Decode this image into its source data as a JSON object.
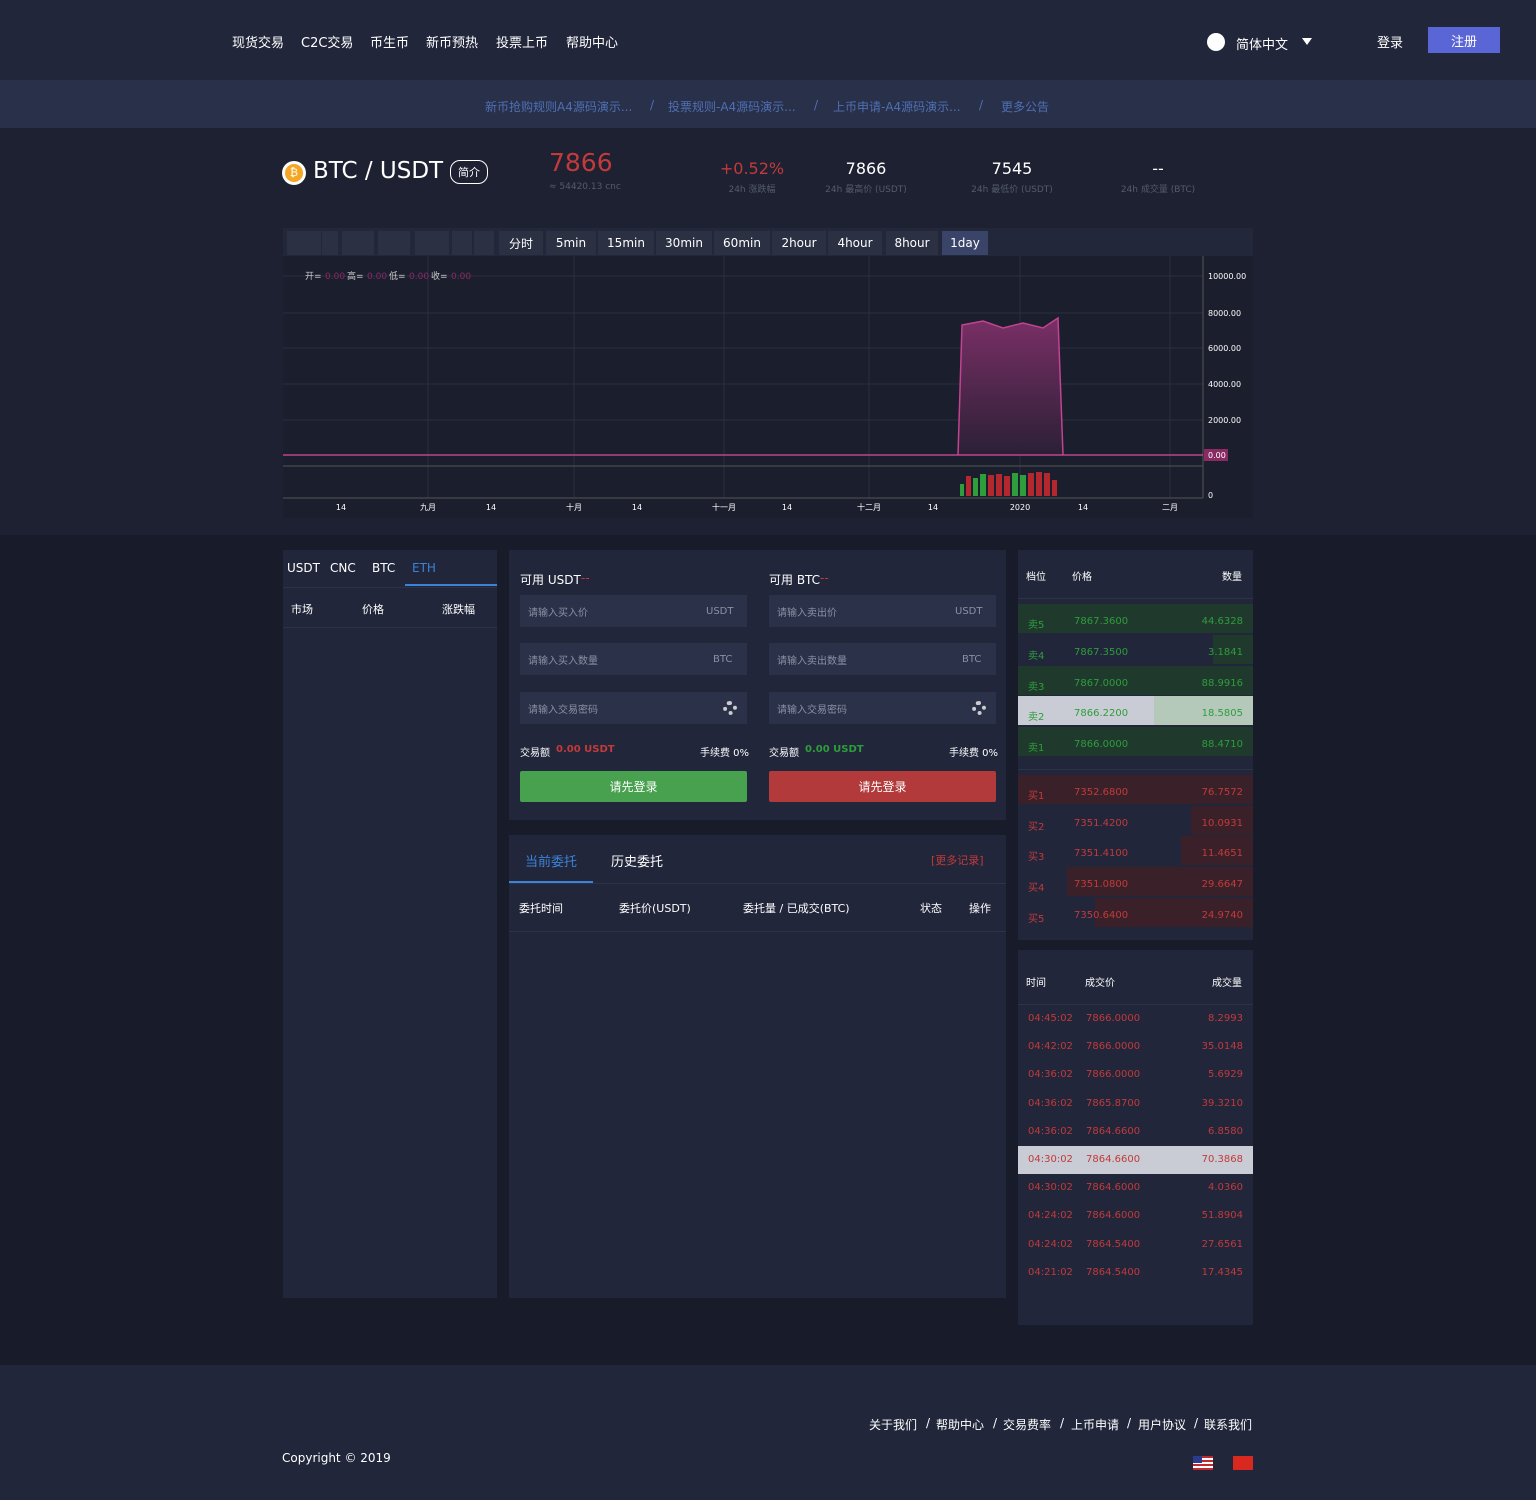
{
  "nav": {
    "items": [
      "现货交易",
      "C2C交易",
      "币生币",
      "新币预热",
      "投票上币",
      "帮助中心"
    ],
    "language": "简体中文",
    "login": "登录",
    "register": "注册"
  },
  "notices": {
    "items": [
      "新币抢购规则A4源码演示...",
      "投票规则-A4源码演示...",
      "上币申请-A4源码演示...",
      "更多公告"
    ],
    "separator": "/"
  },
  "ticker": {
    "coin_icon": "₿",
    "pair": "BTC / USDT",
    "intro": "简介",
    "price": "7866",
    "price_cnc": "≈ 54420.13 cnc",
    "stats": [
      {
        "value": "+0.52%",
        "label": "24h 涨跌幅"
      },
      {
        "value": "7866",
        "label": "24h 最高价 (USDT)"
      },
      {
        "value": "7545",
        "label": "24h 最低价 (USDT)"
      },
      {
        "value": "--",
        "label": "24h 成交量 (BTC)"
      }
    ]
  },
  "chart": {
    "intervals": [
      "分时",
      "5min",
      "15min",
      "30min",
      "60min",
      "2hour",
      "4hour",
      "8hour",
      "1day"
    ],
    "legend": [
      {
        "label": "开=",
        "value": "0.00"
      },
      {
        "label": "高=",
        "value": "0.00"
      },
      {
        "label": "低=",
        "value": "0.00"
      },
      {
        "label": "收=",
        "value": "0.00"
      }
    ],
    "y_labels": [
      "10000.00",
      "8000.00",
      "6000.00",
      "4000.00",
      "2000.00"
    ],
    "current_price": "0.00",
    "volume_zero": "0",
    "x_labels": [
      "14",
      "九月",
      "14",
      "十月",
      "14",
      "十一月",
      "14",
      "十二月",
      "14",
      "2020",
      "14",
      "二月"
    ]
  },
  "market": {
    "tabs": [
      "USDT",
      "CNC",
      "BTC",
      "ETH"
    ],
    "headers": [
      "市场",
      "价格",
      "涨跌幅"
    ]
  },
  "trade": {
    "buy": {
      "available_label": "可用 USDT",
      "available": "--",
      "price_placeholder": "请输入买入价",
      "price_unit": "USDT",
      "amount_placeholder": "请输入买入数量",
      "amount_unit": "BTC",
      "password_placeholder": "请输入交易密码",
      "total_label": "交易额",
      "total": "0.00 USDT",
      "fee": "手续费 0%",
      "button": "请先登录"
    },
    "sell": {
      "available_label": "可用 BTC",
      "available": "--",
      "price_placeholder": "请输入卖出价",
      "price_unit": "USDT",
      "amount_placeholder": "请输入卖出数量",
      "amount_unit": "BTC",
      "password_placeholder": "请输入交易密码",
      "total_label": "交易额",
      "total": "0.00 USDT",
      "fee": "手续费 0%",
      "button": "请先登录"
    }
  },
  "orders": {
    "tabs": [
      "当前委托",
      "历史委托"
    ],
    "more": "[更多记录]",
    "headers": [
      "委托时间",
      "委托价(USDT)",
      "委托量 / 已成交(BTC)",
      "状态",
      "操作"
    ]
  },
  "orderbook": {
    "headers": [
      "档位",
      "价格",
      "数量"
    ],
    "asks": [
      [
        "卖5",
        "7867.3600",
        "44.6328"
      ],
      [
        "卖4",
        "7867.3500",
        "3.1841"
      ],
      [
        "卖3",
        "7867.0000",
        "88.9916"
      ],
      [
        "卖2",
        "7866.2200",
        "18.5805"
      ],
      [
        "卖1",
        "7866.0000",
        "88.4710"
      ]
    ],
    "bids": [
      [
        "买1",
        "7352.6800",
        "76.7572"
      ],
      [
        "买2",
        "7351.4200",
        "10.0931"
      ],
      [
        "买3",
        "7351.4100",
        "11.4651"
      ],
      [
        "买4",
        "7351.0800",
        "29.6647"
      ],
      [
        "买5",
        "7350.6400",
        "24.9740"
      ]
    ]
  },
  "trades": {
    "headers": [
      "时间",
      "成交价",
      "成交量"
    ],
    "rows": [
      [
        "04:45:02",
        "7866.0000",
        "8.2993"
      ],
      [
        "04:42:02",
        "7866.0000",
        "35.0148"
      ],
      [
        "04:36:02",
        "7866.0000",
        "5.6929"
      ],
      [
        "04:36:02",
        "7865.8700",
        "39.3210"
      ],
      [
        "04:36:02",
        "7864.6600",
        "6.8580"
      ],
      [
        "04:30:02",
        "7864.6600",
        "70.3868"
      ],
      [
        "04:30:02",
        "7864.6000",
        "4.0360"
      ],
      [
        "04:24:02",
        "7864.6000",
        "51.8904"
      ],
      [
        "04:24:02",
        "7864.5400",
        "27.6561"
      ],
      [
        "04:21:02",
        "7864.5400",
        "17.4345"
      ]
    ]
  },
  "footer": {
    "links": [
      "关于我们",
      "帮助中心",
      "交易费率",
      "上币申请",
      "用户协议",
      "联系我们"
    ],
    "separator": "/",
    "copyright": "Copyright © 2019"
  }
}
